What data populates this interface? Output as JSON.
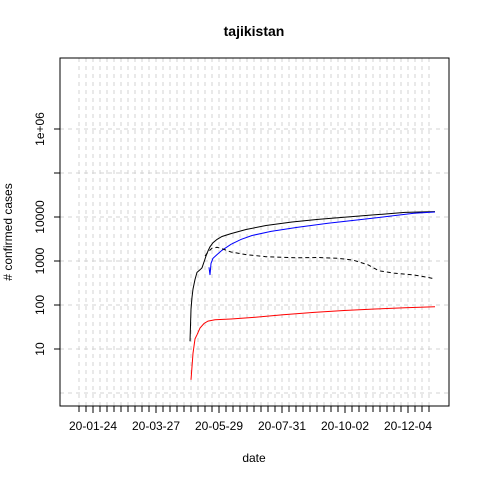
{
  "chart_data": {
    "type": "line",
    "title": "tajikistan",
    "xlabel": "date",
    "ylabel": "# confirmed cases",
    "y_scale": "log",
    "grid": true,
    "grid_style": "dashed light gray",
    "x_range": [
      "2020-01-05",
      "2020-12-31"
    ],
    "ylim": [
      1,
      1000000
    ],
    "x_ticks": [
      {
        "date": "2020-01-24",
        "label": "20-01-24"
      },
      {
        "date": "2020-03-27",
        "label": "20-03-27"
      },
      {
        "date": "2020-05-29",
        "label": "20-05-29"
      },
      {
        "date": "2020-07-31",
        "label": "20-07-31"
      },
      {
        "date": "2020-10-02",
        "label": "20-10-02"
      },
      {
        "date": "2020-12-04",
        "label": "20-12-04"
      }
    ],
    "y_ticks": [
      {
        "value": 10,
        "label": "10"
      },
      {
        "value": 100,
        "label": "100"
      },
      {
        "value": 1000,
        "label": "1000"
      },
      {
        "value": 10000,
        "label": "10000"
      },
      {
        "value": 1000000,
        "label": "1e+06"
      }
    ],
    "series": [
      {
        "color": "#000000",
        "style": "solid",
        "points": [
          [
            "2020-04-30",
            15
          ],
          [
            "2020-05-01",
            80
          ],
          [
            "2020-05-02",
            150
          ],
          [
            "2020-05-03",
            230
          ],
          [
            "2020-05-05",
            380
          ],
          [
            "2020-05-07",
            550
          ],
          [
            "2020-05-10",
            630
          ],
          [
            "2020-05-12",
            700
          ],
          [
            "2020-05-14",
            950
          ],
          [
            "2020-05-16",
            1300
          ],
          [
            "2020-05-18",
            1700
          ],
          [
            "2020-05-20",
            2100
          ],
          [
            "2020-05-23",
            2600
          ],
          [
            "2020-05-27",
            3100
          ],
          [
            "2020-06-01",
            3600
          ],
          [
            "2020-06-10",
            4200
          ],
          [
            "2020-06-25",
            5200
          ],
          [
            "2020-07-15",
            6400
          ],
          [
            "2020-08-10",
            7700
          ],
          [
            "2020-09-05",
            8800
          ],
          [
            "2020-10-01",
            9900
          ],
          [
            "2020-11-01",
            11200
          ],
          [
            "2020-12-01",
            12700
          ],
          [
            "2020-12-31",
            13300
          ]
        ]
      },
      {
        "color": "#0000ff",
        "style": "solid",
        "points": [
          [
            "2020-05-19",
            720
          ],
          [
            "2020-05-20",
            480
          ],
          [
            "2020-05-21",
            880
          ],
          [
            "2020-05-23",
            1150
          ],
          [
            "2020-05-27",
            1400
          ],
          [
            "2020-06-01",
            1750
          ],
          [
            "2020-06-10",
            2400
          ],
          [
            "2020-06-20",
            3100
          ],
          [
            "2020-07-01",
            3800
          ],
          [
            "2020-07-20",
            4700
          ],
          [
            "2020-08-15",
            5800
          ],
          [
            "2020-09-15",
            7200
          ],
          [
            "2020-10-15",
            8600
          ],
          [
            "2020-11-15",
            10400
          ],
          [
            "2020-12-10",
            12200
          ],
          [
            "2020-12-31",
            13000
          ]
        ]
      },
      {
        "color": "#000000",
        "style": "dashed",
        "points": [
          [
            "2020-05-15",
            1300
          ],
          [
            "2020-05-18",
            1600
          ],
          [
            "2020-05-22",
            1950
          ],
          [
            "2020-05-27",
            2050
          ],
          [
            "2020-06-01",
            1900
          ],
          [
            "2020-06-10",
            1600
          ],
          [
            "2020-06-25",
            1400
          ],
          [
            "2020-07-15",
            1250
          ],
          [
            "2020-08-15",
            1180
          ],
          [
            "2020-09-05",
            1200
          ],
          [
            "2020-09-25",
            1150
          ],
          [
            "2020-10-10",
            1050
          ],
          [
            "2020-10-25",
            820
          ],
          [
            "2020-11-05",
            600
          ],
          [
            "2020-11-20",
            530
          ],
          [
            "2020-12-10",
            480
          ],
          [
            "2020-12-25",
            420
          ],
          [
            "2020-12-31",
            390
          ]
        ]
      },
      {
        "color": "#ff0000",
        "style": "solid",
        "points": [
          [
            "2020-05-01",
            2
          ],
          [
            "2020-05-03",
            8
          ],
          [
            "2020-05-05",
            17
          ],
          [
            "2020-05-07",
            21
          ],
          [
            "2020-05-10",
            30
          ],
          [
            "2020-05-14",
            38
          ],
          [
            "2020-05-18",
            43
          ],
          [
            "2020-05-25",
            46
          ],
          [
            "2020-06-10",
            48
          ],
          [
            "2020-07-01",
            52
          ],
          [
            "2020-08-01",
            60
          ],
          [
            "2020-09-01",
            68
          ],
          [
            "2020-10-01",
            75
          ],
          [
            "2020-11-01",
            81
          ],
          [
            "2020-12-01",
            87
          ],
          [
            "2020-12-31",
            91
          ]
        ]
      }
    ]
  }
}
